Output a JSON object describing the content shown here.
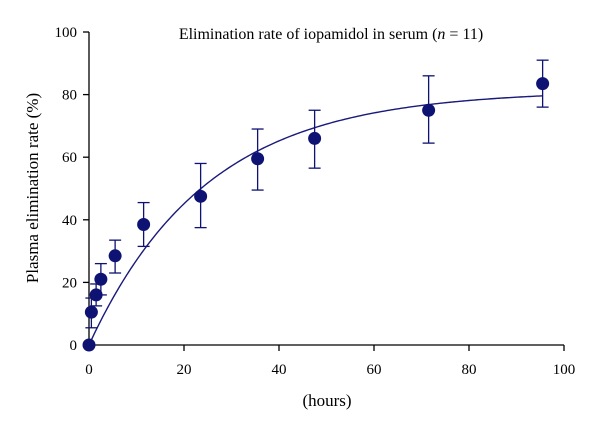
{
  "chart_data": {
    "type": "scatter",
    "title_main": "Elimination rate of iopamidol in serum (",
    "title_italic": "n",
    "title_tail": " = 11)",
    "xlabel": "(hours)",
    "ylabel": "Plasma elimination rate (%)",
    "xlim": [
      0,
      100
    ],
    "ylim": [
      0,
      100
    ],
    "xticks": [
      0,
      20,
      40,
      60,
      80,
      100
    ],
    "yticks": [
      0,
      20,
      40,
      60,
      80,
      100
    ],
    "grid": false,
    "series": [
      {
        "points": [
          {
            "x": 0,
            "y": 0,
            "err_low": 0,
            "err_high": 0
          },
          {
            "x": 0.5,
            "y": 10.5,
            "err_low": 5.5,
            "err_high": 15.0
          },
          {
            "x": 1.5,
            "y": 16.0,
            "err_low": 12.5,
            "err_high": 19.5
          },
          {
            "x": 2.5,
            "y": 21.0,
            "err_low": 16.0,
            "err_high": 26.0
          },
          {
            "x": 5.5,
            "y": 28.5,
            "err_low": 23.0,
            "err_high": 33.5
          },
          {
            "x": 11.5,
            "y": 38.5,
            "err_low": 31.5,
            "err_high": 45.5
          },
          {
            "x": 23.5,
            "y": 47.5,
            "err_low": 37.5,
            "err_high": 58.0
          },
          {
            "x": 35.5,
            "y": 59.5,
            "err_low": 49.5,
            "err_high": 69.0
          },
          {
            "x": 47.5,
            "y": 66.0,
            "err_low": 56.5,
            "err_high": 75.0
          },
          {
            "x": 71.5,
            "y": 75.0,
            "err_low": 64.5,
            "err_high": 86.0
          },
          {
            "x": 95.5,
            "y": 83.5,
            "err_low": 76.0,
            "err_high": 91.0
          }
        ]
      }
    ],
    "fit_curve": {
      "model": "y = A * (1 - exp(-k * x))",
      "A": 81.3,
      "k": 0.0405
    },
    "colors": {
      "points": "#0d1273",
      "curve": "#1a1a7a",
      "axes": "#000000"
    }
  }
}
